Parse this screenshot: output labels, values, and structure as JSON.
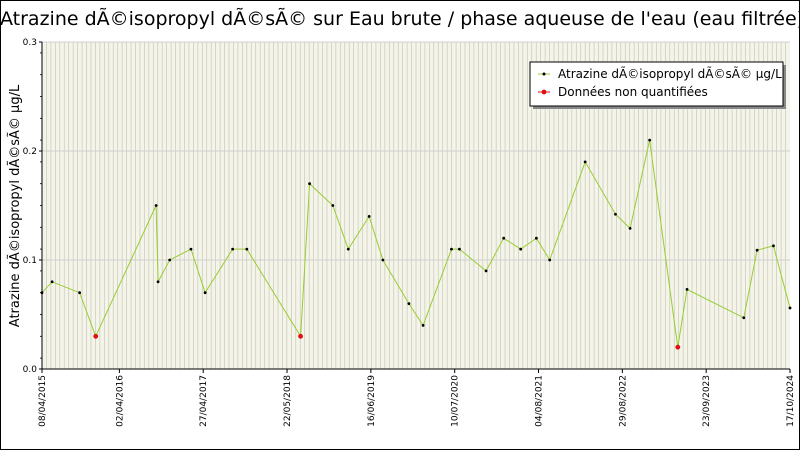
{
  "chart_data": {
    "type": "line",
    "title": "Atrazine dÃ©isopropyl dÃ©sÃ© sur Eau brute / phase aqueuse de l'eau (eau filtrée)",
    "ylabel": "Atrazine dÃ©isopropyl dÃ©sÃ© µg/L",
    "xlabel": "",
    "ylim": [
      0,
      0.3
    ],
    "y_ticks": [
      0.0,
      0.1,
      0.2,
      0.3
    ],
    "y_tick_labels": [
      "0.0",
      "0.1",
      "0.2",
      "0.3"
    ],
    "x_range": [
      "2015-04-08",
      "2024-10-17"
    ],
    "x_tick_labels": [
      {
        "date": "2015-04-08",
        "label": "08/04/2015"
      },
      {
        "date": "2016-04-02",
        "label": "02/04/2016"
      },
      {
        "date": "2017-04-27",
        "label": "27/04/2017"
      },
      {
        "date": "2018-05-22",
        "label": "22/05/2018"
      },
      {
        "date": "2019-06-16",
        "label": "16/06/2019"
      },
      {
        "date": "2020-07-10",
        "label": "10/07/2020"
      },
      {
        "date": "2021-08-04",
        "label": "04/08/2021"
      },
      {
        "date": "2022-08-29",
        "label": "29/08/2022"
      },
      {
        "date": "2023-09-23",
        "label": "23/09/2023"
      },
      {
        "date": "2024-10-17",
        "label": "17/10/2024"
      }
    ],
    "grid": true,
    "legend_position": "top-right",
    "series": [
      {
        "name": "Atrazine dÃ©isopropyl dÃ©sÃ© µg/L",
        "color": "#99cc33",
        "marker_color": "#000000",
        "points": [
          {
            "x": "2015-04-08",
            "y": 0.07,
            "quantified": true
          },
          {
            "x": "2015-05-25",
            "y": 0.08,
            "quantified": true
          },
          {
            "x": "2015-09-30",
            "y": 0.07,
            "quantified": true
          },
          {
            "x": "2015-12-14",
            "y": 0.03,
            "quantified": false
          },
          {
            "x": "2016-09-20",
            "y": 0.15,
            "quantified": true
          },
          {
            "x": "2016-09-29",
            "y": 0.08,
            "quantified": true
          },
          {
            "x": "2016-11-22",
            "y": 0.1,
            "quantified": true
          },
          {
            "x": "2017-03-01",
            "y": 0.11,
            "quantified": true
          },
          {
            "x": "2017-05-06",
            "y": 0.07,
            "quantified": true
          },
          {
            "x": "2017-09-11",
            "y": 0.11,
            "quantified": true
          },
          {
            "x": "2017-11-16",
            "y": 0.11,
            "quantified": true
          },
          {
            "x": "2018-07-24",
            "y": 0.03,
            "quantified": false
          },
          {
            "x": "2018-09-04",
            "y": 0.17,
            "quantified": true
          },
          {
            "x": "2018-12-21",
            "y": 0.15,
            "quantified": true
          },
          {
            "x": "2019-03-03",
            "y": 0.11,
            "quantified": true
          },
          {
            "x": "2019-06-08",
            "y": 0.14,
            "quantified": true
          },
          {
            "x": "2019-08-11",
            "y": 0.1,
            "quantified": true
          },
          {
            "x": "2019-12-10",
            "y": 0.06,
            "quantified": true
          },
          {
            "x": "2020-02-14",
            "y": 0.04,
            "quantified": true
          },
          {
            "x": "2020-06-25",
            "y": 0.11,
            "quantified": true
          },
          {
            "x": "2020-08-01",
            "y": 0.11,
            "quantified": true
          },
          {
            "x": "2020-12-03",
            "y": 0.09,
            "quantified": true
          },
          {
            "x": "2021-02-23",
            "y": 0.12,
            "quantified": true
          },
          {
            "x": "2021-05-13",
            "y": 0.11,
            "quantified": true
          },
          {
            "x": "2021-07-25",
            "y": 0.12,
            "quantified": true
          },
          {
            "x": "2021-09-25",
            "y": 0.1,
            "quantified": true
          },
          {
            "x": "2022-03-09",
            "y": 0.19,
            "quantified": true
          },
          {
            "x": "2022-07-28",
            "y": 0.142,
            "quantified": true
          },
          {
            "x": "2022-10-04",
            "y": 0.129,
            "quantified": true
          },
          {
            "x": "2023-01-03",
            "y": 0.21,
            "quantified": true
          },
          {
            "x": "2023-05-14",
            "y": 0.02,
            "quantified": false
          },
          {
            "x": "2023-06-26",
            "y": 0.073,
            "quantified": true
          },
          {
            "x": "2024-03-16",
            "y": 0.047,
            "quantified": true
          },
          {
            "x": "2024-05-17",
            "y": 0.109,
            "quantified": true
          },
          {
            "x": "2024-08-01",
            "y": 0.113,
            "quantified": true
          },
          {
            "x": "2024-10-17",
            "y": 0.056,
            "quantified": true
          }
        ]
      }
    ],
    "legend": [
      {
        "label": "Atrazine dÃ©isopropyl dÃ©sÃ© µg/L",
        "marker_color": "#000000",
        "line_color": "#99cc33"
      },
      {
        "label": "Données non quantifiées",
        "marker_color": "#e01010",
        "line_color": "#e01010"
      }
    ]
  }
}
